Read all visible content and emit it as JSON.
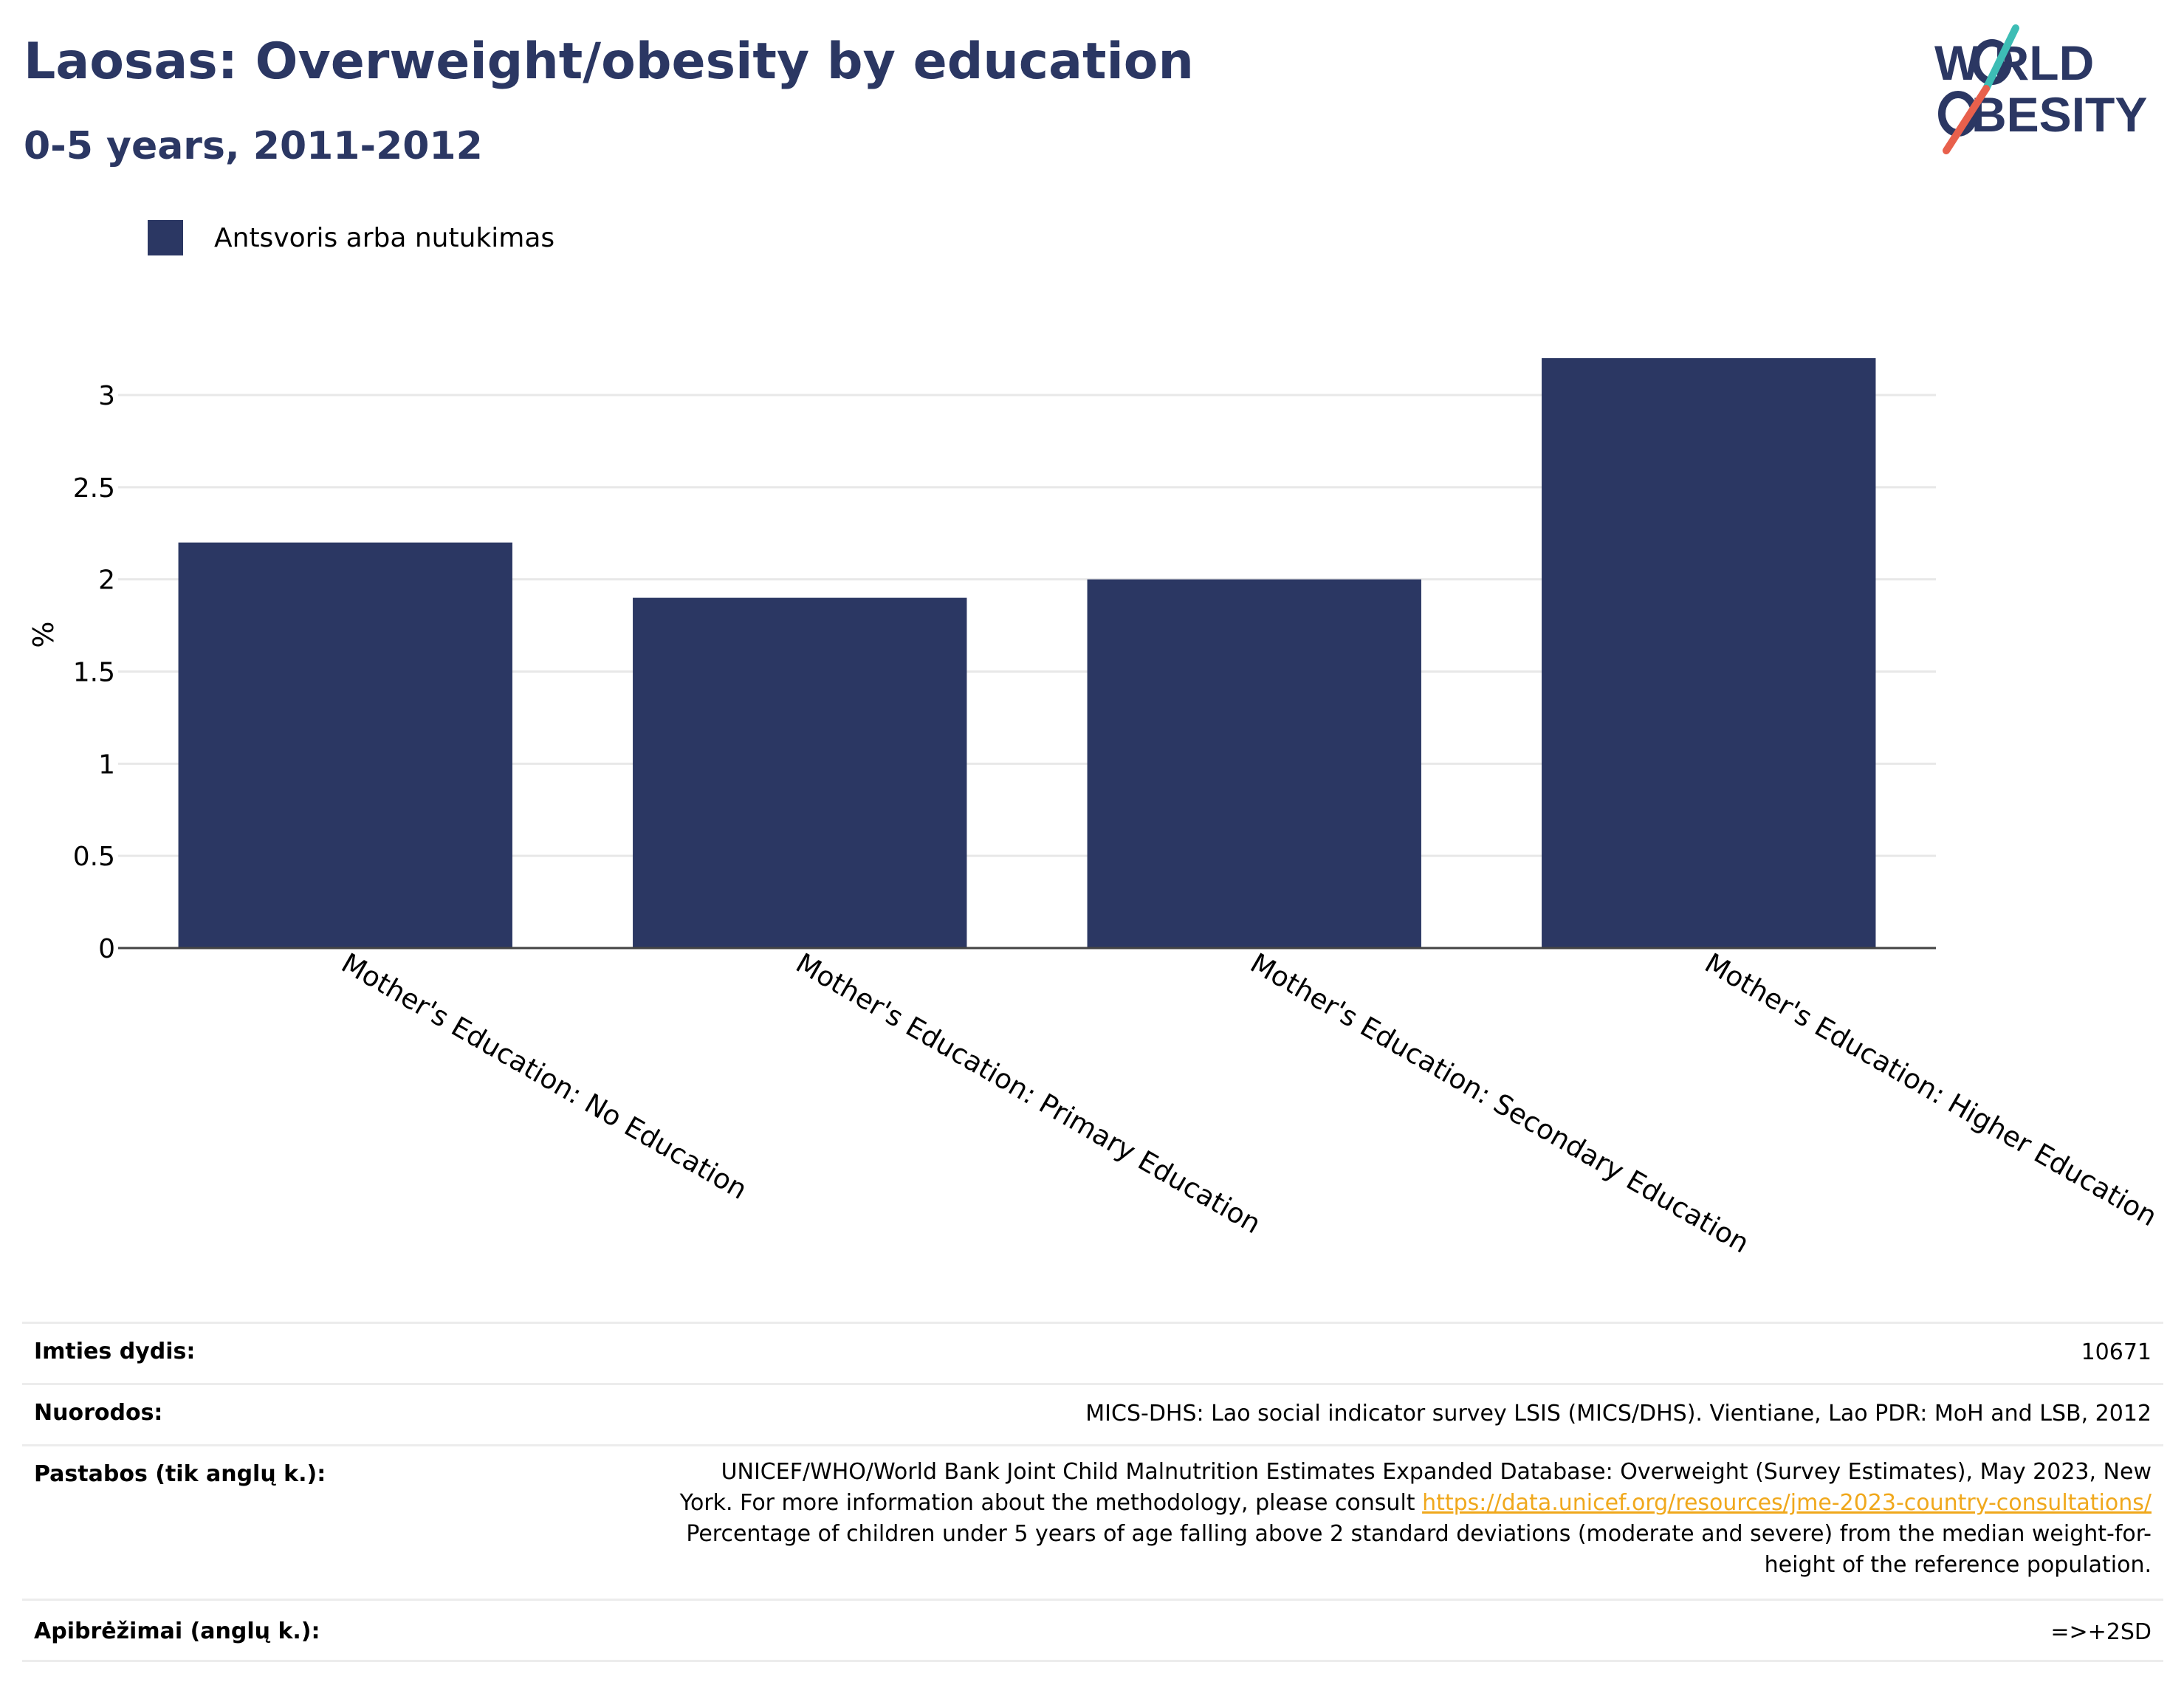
{
  "header": {
    "title": "Laosas: Overweight/obesity by education",
    "subtitle": "0-5 years, 2011-2012"
  },
  "logo": {
    "line1": "W RLD",
    "line2": "BESITY",
    "colors": {
      "text": "#2b3763",
      "slash_top": "#3dbdb5",
      "slash_bottom": "#e8604c"
    }
  },
  "legend": {
    "label": "Antsvoris arba nutukimas",
    "color": "#2b3763"
  },
  "chart_data": {
    "type": "bar",
    "categories": [
      "Mother's Education: No Education",
      "Mother's Education: Primary Education",
      "Mother's Education: Secondary Education",
      "Mother's Education: Higher Education"
    ],
    "series": [
      {
        "name": "Antsvoris arba nutukimas",
        "values": [
          2.2,
          1.9,
          2.0,
          3.2
        ],
        "color": "#2b3763"
      }
    ],
    "ylabel": "%",
    "xlabel": "",
    "ylim": [
      0,
      3.3
    ],
    "yticks": [
      0,
      0.5,
      1,
      1.5,
      2,
      2.5,
      3
    ],
    "ytick_labels": [
      "0",
      "0.5",
      "1",
      "1.5",
      "2",
      "2.5",
      "3"
    ],
    "grid": true
  },
  "info": {
    "sample_label": "Imties dydis:",
    "sample_value": "10671",
    "refs_label": "Nuorodos:",
    "refs_value": "MICS-DHS: Lao social indicator survey LSIS (MICS/DHS). Vientiane, Lao PDR: MoH and LSB, 2012",
    "notes_label": "Pastabos (tik anglų k.):",
    "notes_line1": "UNICEF/WHO/World Bank Joint Child Malnutrition Estimates Expanded Database: Overweight (Survey Estimates), May 2023, New",
    "notes_line2": "York. For more information about the methodology, please consult",
    "notes_link": "https://data.unicef.org/resources/jme-2023-country-consultations/",
    "notes_line3": "Percentage of children under 5 years of age falling above 2 standard deviations (moderate and severe) from the median weight-for-",
    "notes_line4": "height of the reference population.",
    "defs_label": "Apibrėžimai (anglų k.):",
    "defs_value": "=>+2SD"
  }
}
